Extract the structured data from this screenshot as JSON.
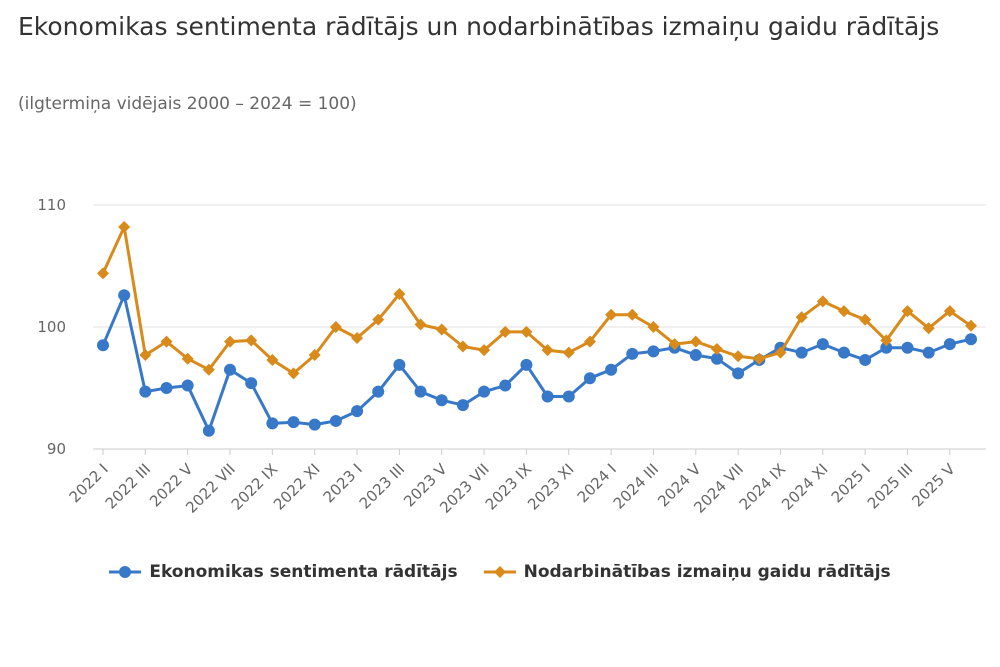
{
  "title": "Ekonomikas sentimenta rādītājs un nodarbinātības izmaiņu gaidu rādītājs",
  "subtitle": "(ilgtermiņa vidējais 2000 – 2024 = 100)",
  "colors": {
    "series1": "#3878c8",
    "series2": "#d88a1a",
    "grid": "#e0e0e0",
    "axis": "#cccccc"
  },
  "chart_data": {
    "type": "line",
    "ylim": [
      90,
      110
    ],
    "yticks": [
      90,
      100,
      110
    ],
    "grid": true,
    "legend_position": "bottom",
    "categories": [
      "2022 I",
      "2022 II",
      "2022 III",
      "2022 IV",
      "2022 V",
      "2022 VI",
      "2022 VII",
      "2022 VIII",
      "2022 IX",
      "2022 X",
      "2022 XI",
      "2022 XII",
      "2023 I",
      "2023 II",
      "2023 III",
      "2023 IV",
      "2023 V",
      "2023 VI",
      "2023 VII",
      "2023 VIII",
      "2023 IX",
      "2023 X",
      "2023 XI",
      "2023 XII",
      "2024 I",
      "2024 II",
      "2024 III",
      "2024 IV",
      "2024 V",
      "2024 VI",
      "2024 VII",
      "2024 VIII",
      "2024 IX",
      "2024 X",
      "2024 XI",
      "2024 XII",
      "2025 I",
      "2025 II",
      "2025 III",
      "2025 IV",
      "2025 V",
      "2025 VI"
    ],
    "xtick_labels": [
      "2022 I",
      "2022 III",
      "2022 V",
      "2022 VII",
      "2022 IX",
      "2022 XI",
      "2023 I",
      "2023 III",
      "2023 V",
      "2023 VII",
      "2023 IX",
      "2023 XI",
      "2024 I",
      "2024 III",
      "2024 V",
      "2024 VII",
      "2024 IX",
      "2024 XI",
      "2025 I",
      "2025 III",
      "2025 V"
    ],
    "series": [
      {
        "name": "Ekonomikas sentimenta rādītājs",
        "marker": "circle",
        "values": [
          98.5,
          102.6,
          94.7,
          95.0,
          95.2,
          91.5,
          96.5,
          95.4,
          92.1,
          92.2,
          92.0,
          92.3,
          93.1,
          94.7,
          96.9,
          94.7,
          94.0,
          93.6,
          94.7,
          95.2,
          96.9,
          94.3,
          94.3,
          95.8,
          96.5,
          97.8,
          98.0,
          98.3,
          97.7,
          97.4,
          96.2,
          97.3,
          98.3,
          97.9,
          98.6,
          97.9,
          97.3,
          98.3,
          98.3,
          97.9,
          98.6,
          99.0
        ]
      },
      {
        "name": "Nodarbinātības izmaiņu gaidu rādītājs",
        "marker": "diamond",
        "values": [
          104.4,
          108.2,
          97.7,
          98.8,
          97.4,
          96.5,
          98.8,
          98.9,
          97.3,
          96.2,
          97.7,
          100.0,
          99.1,
          100.6,
          102.7,
          100.2,
          99.8,
          98.4,
          98.1,
          99.6,
          99.6,
          98.1,
          97.9,
          98.8,
          101.0,
          101.0,
          100.0,
          98.6,
          98.8,
          98.2,
          97.6,
          97.4,
          97.9,
          100.8,
          102.1,
          101.3,
          100.6,
          98.9,
          101.3,
          99.9,
          101.3,
          100.1
        ]
      }
    ]
  }
}
